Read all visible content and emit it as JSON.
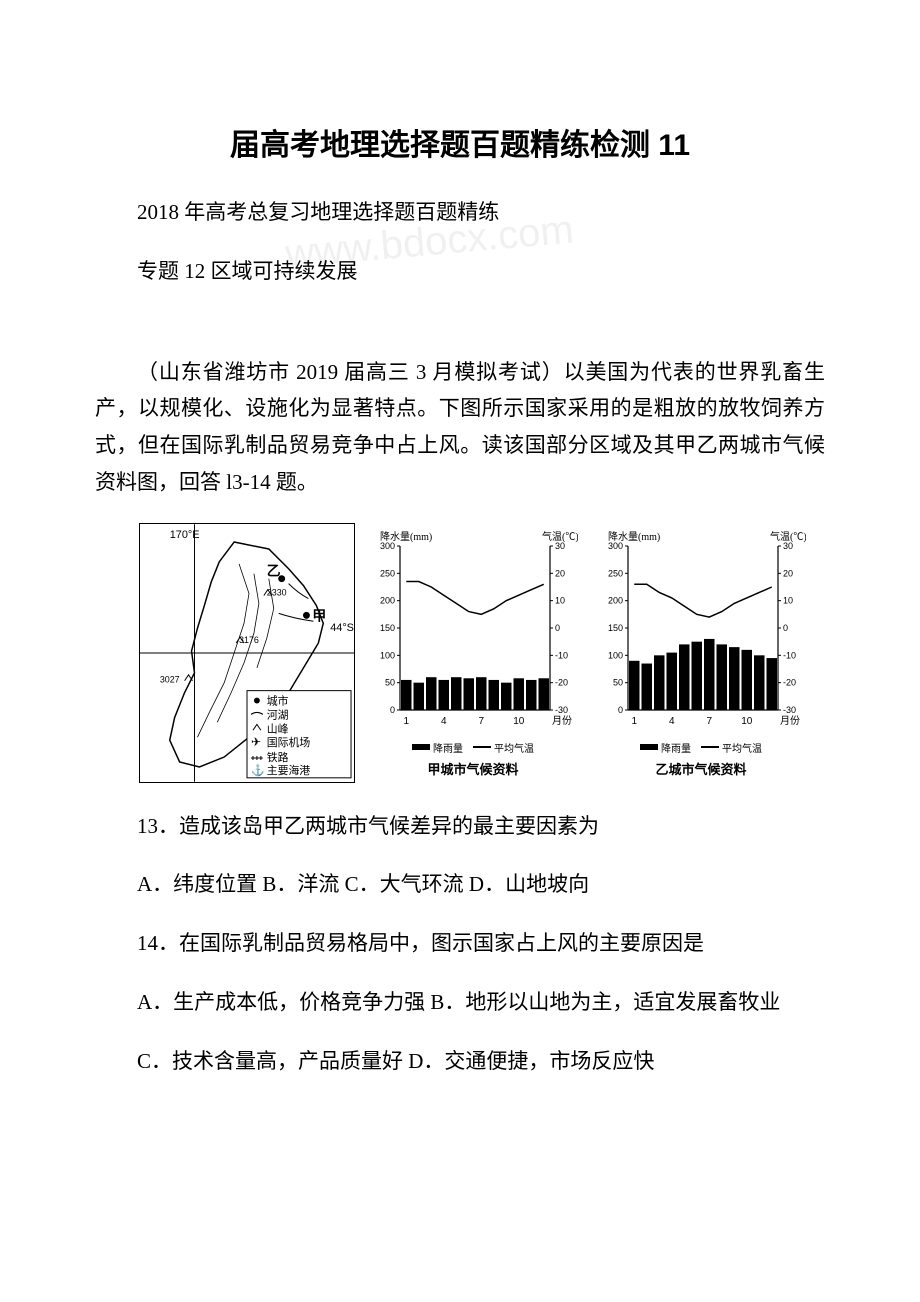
{
  "title": "届高考地理选择题百题精练检测 11",
  "line1": "2018 年高考总复习地理选择题百题精练",
  "line2": "专题 12 区域可持续发展",
  "passage": "（山东省潍坊市 2019 届高三 3 月模拟考试）以美国为代表的世界乳畜生产，以规模化、设施化为显著特点。下图所示国家采用的是粗放的放牧饲养方式，但在国际乳制品贸易竞争中占上风。读该国部分区域及其甲乙两城市气候资料图，回答 l3-14 题。",
  "q13": "13．造成该岛甲乙两城市气候差异的最主要因素为",
  "q13_options": "A．纬度位置 B．洋流 C．大气环流 D．山地坡向",
  "q14": "14．在国际乳制品贸易格局中，图示国家占上风的主要原因是",
  "q14_ab": "A．生产成本低，价格竞争力强 B．地形以山地为主，适宜发展畜牧业",
  "q14_cd": "C．技术含量高，产品质量好 D．交通便捷，市场反应快",
  "map": {
    "lon_label": "170°E",
    "lat_label": "44°S",
    "city_a": "甲",
    "city_b": "乙",
    "elevation1": "2330",
    "elevation2": "3176",
    "elevation3": "3027",
    "legend_items": [
      "城市",
      "河湖",
      "山峰",
      "国际机场",
      "铁路",
      "主要海港"
    ]
  },
  "chart_a": {
    "caption": "甲城市气候资料",
    "y1_label": "降水量(mm)",
    "y2_label": "气温(℃)",
    "y1_ticks": [
      "0",
      "50",
      "100",
      "150",
      "200",
      "250",
      "300"
    ],
    "y2_ticks": [
      "-30",
      "-20",
      "-10",
      "0",
      "10",
      "20",
      "30"
    ],
    "x_ticks": [
      "1",
      "4",
      "7",
      "10",
      "月份"
    ],
    "precip": [
      55,
      50,
      60,
      55,
      60,
      58,
      60,
      55,
      50,
      58,
      55,
      58
    ],
    "temp": [
      17,
      17,
      15,
      12,
      9,
      6,
      5,
      7,
      10,
      12,
      14,
      16
    ],
    "bar_color": "#000000",
    "line_color": "#000000",
    "legend_precip": "降雨量",
    "legend_temp": "平均气温"
  },
  "chart_b": {
    "caption": "乙城市气候资料",
    "y1_label": "降水量(mm)",
    "y2_label": "气温(℃)",
    "y1_ticks": [
      "0",
      "50",
      "100",
      "150",
      "200",
      "250",
      "300"
    ],
    "y2_ticks": [
      "-30",
      "-20",
      "-10",
      "0",
      "10",
      "20",
      "30"
    ],
    "x_ticks": [
      "1",
      "4",
      "7",
      "10",
      "月份"
    ],
    "precip": [
      90,
      85,
      100,
      105,
      120,
      125,
      130,
      120,
      115,
      110,
      100,
      95
    ],
    "temp": [
      16,
      16,
      13,
      11,
      8,
      5,
      4,
      6,
      9,
      11,
      13,
      15
    ],
    "bar_color": "#000000",
    "line_color": "#000000",
    "legend_precip": "降雨量",
    "legend_temp": "平均气温"
  },
  "colors": {
    "text": "#000000",
    "background": "#ffffff"
  }
}
